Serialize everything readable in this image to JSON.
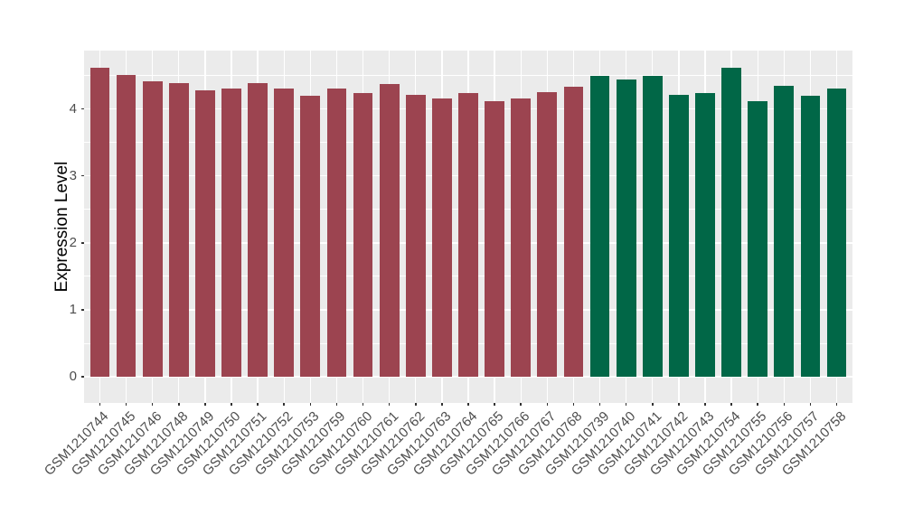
{
  "chart_data": {
    "type": "bar",
    "title": "",
    "xlabel": "",
    "ylabel": "Expression Level",
    "ylim": [
      -0.39,
      4.87
    ],
    "yticks": [
      0,
      1,
      2,
      3,
      4
    ],
    "yticks_minor": [
      0.5,
      1.5,
      2.5,
      3.5,
      4.5
    ],
    "grid": true,
    "legend": false,
    "panel_bg": "#EBEBEB",
    "grid_color": "#FFFFFF",
    "tick_mark_color": "#333333",
    "tick_label_color": "#4D4D4D",
    "categories": [
      "GSM1210744",
      "GSM1210745",
      "GSM1210746",
      "GSM1210748",
      "GSM1210749",
      "GSM1210750",
      "GSM1210751",
      "GSM1210752",
      "GSM1210753",
      "GSM1210759",
      "GSM1210760",
      "GSM1210761",
      "GSM1210762",
      "GSM1210763",
      "GSM1210764",
      "GSM1210765",
      "GSM1210766",
      "GSM1210767",
      "GSM1210768",
      "GSM1210739",
      "GSM1210740",
      "GSM1210741",
      "GSM1210742",
      "GSM1210743",
      "GSM1210754",
      "GSM1210755",
      "GSM1210756",
      "GSM1210757",
      "GSM1210758"
    ],
    "values": [
      4.62,
      4.5,
      4.41,
      4.38,
      4.28,
      4.3,
      4.38,
      4.3,
      4.19,
      4.3,
      4.23,
      4.37,
      4.21,
      4.15,
      4.24,
      4.12,
      4.15,
      4.25,
      4.33,
      4.49,
      4.44,
      4.49,
      4.21,
      4.24,
      4.61,
      4.11,
      4.35,
      4.19,
      4.3
    ],
    "groups": [
      "red",
      "red",
      "red",
      "red",
      "red",
      "red",
      "red",
      "red",
      "red",
      "red",
      "red",
      "red",
      "red",
      "red",
      "red",
      "red",
      "red",
      "red",
      "red",
      "green",
      "green",
      "green",
      "green",
      "green",
      "green",
      "green",
      "green",
      "green",
      "green"
    ],
    "group_colors": {
      "red": "#9C4450",
      "green": "#016747"
    }
  }
}
